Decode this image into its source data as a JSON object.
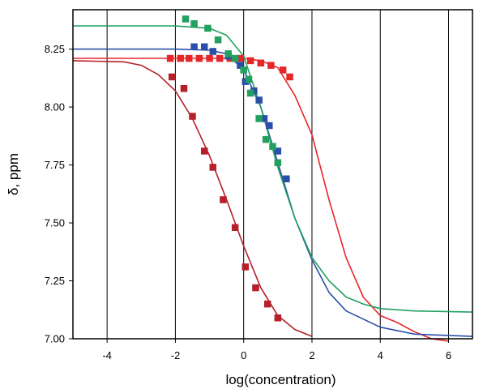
{
  "chart_data": {
    "type": "scatter",
    "title": "",
    "xlabel": "log(concentration)",
    "ylabel": "δ, ppm",
    "xlim": [
      -5,
      6.7
    ],
    "ylim": [
      7.0,
      8.42
    ],
    "x_ticks": [
      -4,
      -2,
      0,
      2,
      4,
      6
    ],
    "x_tick_labels": [
      "-4",
      "-2",
      "0",
      "2",
      "4",
      "6"
    ],
    "y_ticks": [
      7.0,
      7.25,
      7.5,
      7.75,
      8.0,
      8.25
    ],
    "y_tick_labels": [
      "7.00",
      "7.25",
      "7.50",
      "7.75",
      "8.00",
      "8.25"
    ],
    "grid": "vertical",
    "series": [
      {
        "color": "#b5202a",
        "points": [
          [
            -2.1,
            8.13
          ],
          [
            -1.75,
            8.08
          ],
          [
            -1.5,
            7.96
          ],
          [
            -1.15,
            7.81
          ],
          [
            -0.9,
            7.74
          ],
          [
            -0.6,
            7.6
          ],
          [
            -0.25,
            7.48
          ],
          [
            0.05,
            7.31
          ],
          [
            0.35,
            7.22
          ],
          [
            0.7,
            7.15
          ],
          [
            1.0,
            7.09
          ]
        ],
        "curve": [
          [
            -5,
            8.2
          ],
          [
            -3.5,
            8.195
          ],
          [
            -3,
            8.18
          ],
          [
            -2.5,
            8.14
          ],
          [
            -2,
            8.07
          ],
          [
            -1.5,
            7.95
          ],
          [
            -1,
            7.79
          ],
          [
            -0.5,
            7.6
          ],
          [
            0,
            7.4
          ],
          [
            0.5,
            7.22
          ],
          [
            1,
            7.1
          ],
          [
            1.5,
            7.04
          ],
          [
            2,
            7.01
          ]
        ]
      },
      {
        "color": "#e8262a",
        "points": [
          [
            -2.15,
            8.21
          ],
          [
            -1.85,
            8.21
          ],
          [
            -1.6,
            8.21
          ],
          [
            -1.3,
            8.21
          ],
          [
            -1.0,
            8.21
          ],
          [
            -0.7,
            8.21
          ],
          [
            -0.4,
            8.21
          ],
          [
            -0.1,
            8.21
          ],
          [
            0.2,
            8.2
          ],
          [
            0.5,
            8.19
          ],
          [
            0.8,
            8.18
          ],
          [
            1.15,
            8.16
          ],
          [
            1.35,
            8.13
          ]
        ],
        "curve": [
          [
            -5,
            8.21
          ],
          [
            0,
            8.21
          ],
          [
            0.5,
            8.2
          ],
          [
            1,
            8.17
          ],
          [
            1.5,
            8.05
          ],
          [
            2,
            7.88
          ],
          [
            2.5,
            7.6
          ],
          [
            3,
            7.35
          ],
          [
            3.5,
            7.18
          ],
          [
            4,
            7.1
          ],
          [
            4.5,
            7.07
          ],
          [
            5,
            7.03
          ],
          [
            5.5,
            7.0
          ],
          [
            6.0,
            6.99
          ]
        ]
      },
      {
        "color": "#2a4fa8",
        "points": [
          [
            -1.45,
            8.26
          ],
          [
            -1.15,
            8.26
          ],
          [
            -0.9,
            8.24
          ],
          [
            -0.45,
            8.22
          ],
          [
            -0.1,
            8.18
          ],
          [
            0.05,
            8.11
          ],
          [
            0.3,
            8.07
          ],
          [
            0.45,
            8.03
          ],
          [
            0.6,
            7.95
          ],
          [
            0.75,
            7.92
          ],
          [
            1.0,
            7.81
          ],
          [
            1.25,
            7.69
          ]
        ],
        "curve": [
          [
            -5,
            8.25
          ],
          [
            -2,
            8.25
          ],
          [
            -1,
            8.245
          ],
          [
            -0.5,
            8.23
          ],
          [
            0,
            8.16
          ],
          [
            0.5,
            8.0
          ],
          [
            1,
            7.76
          ],
          [
            1.5,
            7.52
          ],
          [
            2,
            7.34
          ],
          [
            2.5,
            7.2
          ],
          [
            3,
            7.12
          ],
          [
            4,
            7.05
          ],
          [
            5,
            7.02
          ],
          [
            6.7,
            7.01
          ]
        ]
      },
      {
        "color": "#22a060",
        "points": [
          [
            -1.7,
            8.38
          ],
          [
            -1.45,
            8.36
          ],
          [
            -1.05,
            8.34
          ],
          [
            -0.75,
            8.29
          ],
          [
            -0.45,
            8.23
          ],
          [
            -0.25,
            8.21
          ],
          [
            0.0,
            8.16
          ],
          [
            0.15,
            8.12
          ],
          [
            0.2,
            8.06
          ],
          [
            0.45,
            7.95
          ],
          [
            0.65,
            7.86
          ],
          [
            0.85,
            7.83
          ],
          [
            1.0,
            7.76
          ]
        ],
        "curve": [
          [
            -5,
            8.35
          ],
          [
            -2,
            8.35
          ],
          [
            -1,
            8.34
          ],
          [
            -0.5,
            8.31
          ],
          [
            0,
            8.22
          ],
          [
            0.5,
            8.0
          ],
          [
            1,
            7.74
          ],
          [
            1.5,
            7.52
          ],
          [
            2,
            7.35
          ],
          [
            2.5,
            7.25
          ],
          [
            3,
            7.18
          ],
          [
            3.5,
            7.15
          ],
          [
            4,
            7.13
          ],
          [
            5,
            7.12
          ],
          [
            6.7,
            7.115
          ]
        ]
      }
    ]
  }
}
